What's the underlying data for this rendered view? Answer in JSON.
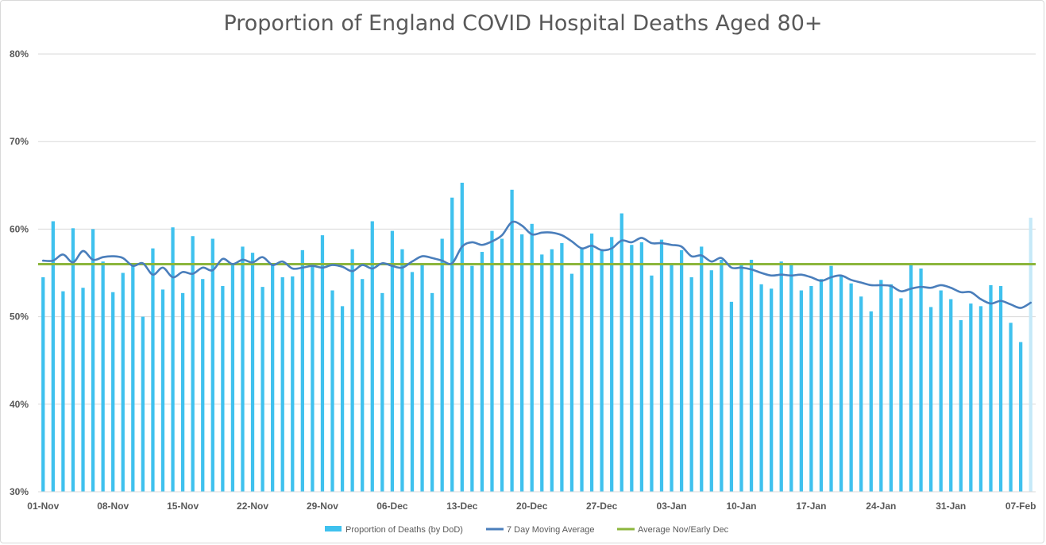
{
  "chart_data": {
    "type": "bar",
    "title": "Proportion of England COVID Hospital Deaths Aged 80+",
    "xlabel": "",
    "ylabel": "",
    "ylim": [
      30,
      80
    ],
    "ytick_values": [
      30,
      40,
      50,
      60,
      70,
      80
    ],
    "ytick_labels": [
      "30%",
      "40%",
      "50%",
      "60%",
      "70%",
      "80%"
    ],
    "xtick_indices": [
      0,
      7,
      14,
      21,
      28,
      35,
      42,
      49,
      56,
      63,
      70,
      77,
      84,
      91,
      98
    ],
    "xtick_labels": [
      "01-Nov",
      "08-Nov",
      "15-Nov",
      "22-Nov",
      "29-Nov",
      "06-Dec",
      "13-Dec",
      "20-Dec",
      "27-Dec",
      "03-Jan",
      "10-Jan",
      "17-Jan",
      "24-Jan",
      "31-Jan",
      "07-Feb"
    ],
    "grid": true,
    "legend_position": "bottom",
    "series": [
      {
        "name": "Proportion of Deaths (by DoD)",
        "kind": "bar",
        "color": "#3fc1ee",
        "last_point_color": "#c6e9f8",
        "values": [
          54.5,
          60.9,
          52.9,
          60.1,
          53.3,
          60.0,
          56.3,
          52.8,
          55.0,
          56.0,
          50.0,
          57.8,
          53.1,
          60.2,
          52.7,
          59.2,
          54.3,
          58.9,
          53.5,
          56.0,
          58.0,
          57.3,
          53.4,
          55.9,
          54.5,
          54.6,
          57.6,
          55.9,
          59.3,
          53.0,
          51.2,
          57.7,
          54.3,
          60.9,
          52.7,
          59.8,
          57.7,
          55.1,
          56.0,
          52.7,
          58.9,
          63.6,
          65.3,
          55.8,
          57.4,
          59.8,
          58.9,
          64.5,
          59.4,
          60.6,
          57.1,
          57.7,
          58.4,
          54.9,
          57.8,
          59.5,
          57.5,
          59.1,
          61.8,
          58.2,
          58.5,
          54.7,
          58.8,
          55.9,
          57.6,
          54.5,
          58.0,
          55.3,
          56.5,
          51.7,
          55.9,
          56.5,
          53.7,
          53.2,
          56.3,
          56.1,
          53.0,
          53.5,
          54.3,
          55.8,
          54.6,
          53.8,
          52.3,
          50.6,
          54.2,
          53.7,
          52.1,
          56.0,
          55.5,
          51.1,
          53.0,
          52.0,
          49.6,
          51.5,
          51.2,
          53.6,
          53.5,
          49.3,
          47.1,
          61.3
        ],
        "moving_average": [
          56.4,
          56.4,
          57.1,
          56.2,
          57.5,
          56.5,
          56.8,
          56.9,
          56.7,
          55.8,
          56.1,
          54.8,
          55.6,
          54.5,
          55.1,
          54.9,
          55.6,
          55.3,
          56.6,
          56.0,
          56.5,
          56.2,
          56.8,
          55.9,
          56.3,
          55.5,
          55.6,
          55.8,
          55.6,
          55.9,
          55.7,
          55.2,
          55.9,
          55.5,
          56.1,
          55.8,
          55.6,
          56.3,
          56.9,
          56.7,
          56.4,
          56.1,
          58.0,
          58.5,
          58.2,
          58.6,
          59.3,
          60.8,
          60.4,
          59.4,
          59.6,
          59.6,
          59.3,
          58.6,
          57.8,
          58.1,
          57.6,
          57.8,
          58.7,
          58.5,
          59.0,
          58.4,
          58.4,
          58.2,
          58.0,
          56.9,
          57.0,
          56.3,
          56.7,
          55.6,
          55.6,
          55.4,
          55.0,
          54.7,
          54.8,
          54.7,
          54.8,
          54.5,
          54.1,
          54.5,
          54.7,
          54.2,
          53.9,
          53.6,
          53.6,
          53.5,
          52.9,
          53.2,
          53.4,
          53.3,
          53.6,
          53.3,
          52.8,
          52.8,
          52.0,
          51.5,
          51.8,
          51.4,
          51.0,
          51.6
        ]
      },
      {
        "name": "7 Day Moving Average",
        "kind": "line",
        "color": "#4a7ebb"
      },
      {
        "name": "Average Nov/Early Dec",
        "kind": "line",
        "color": "#8cb63c",
        "value": 56.0
      }
    ]
  }
}
